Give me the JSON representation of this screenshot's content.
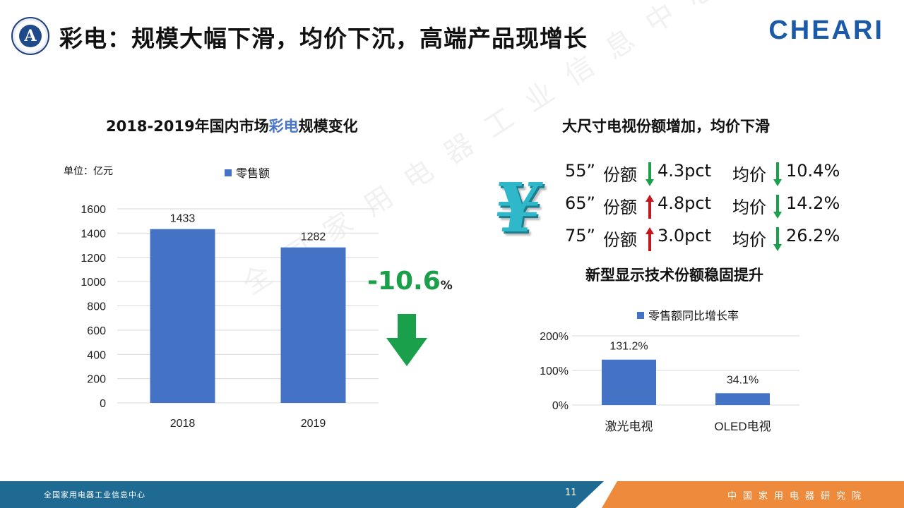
{
  "header": {
    "title": "彩电：规模大幅下滑，均价下沉，高端产品现增长",
    "brand": "CHEARI",
    "logo_letter": "A"
  },
  "colors": {
    "bar": "#4472c4",
    "down": "#1aa04a",
    "up": "#c0181e",
    "footer_blue": "#1f6a93",
    "footer_orange": "#ee8a3c"
  },
  "left": {
    "title_pre": "2018-2019年国内市场",
    "title_hl": "彩电",
    "title_post": "规模变化",
    "unit": "单位：亿元",
    "legend": "零售额",
    "change_value": "-10.6",
    "change_unit": "%"
  },
  "right": {
    "title": "大尺寸电视份额增加，均价下滑",
    "rows": [
      {
        "size": "55”",
        "share_label": "份额",
        "share_dir": "down",
        "share_val": "4.3pct",
        "price_label": "均价",
        "price_dir": "down",
        "price_val": "10.4%"
      },
      {
        "size": "65”",
        "share_label": "份额",
        "share_dir": "up",
        "share_val": "4.8pct",
        "price_label": "均价",
        "price_dir": "down",
        "price_val": "14.2%"
      },
      {
        "size": "75”",
        "share_label": "份额",
        "share_dir": "up",
        "share_val": "3.0pct",
        "price_label": "均价",
        "price_dir": "down",
        "price_val": "26.2%"
      }
    ],
    "subtitle": "新型显示技术份额稳固提升",
    "legend": "零售额同比增长率",
    "yen_symbol": "¥"
  },
  "chart_data": [
    {
      "type": "bar",
      "title": "2018-2019年国内市场彩电规模变化",
      "categories": [
        "2018",
        "2019"
      ],
      "series": [
        {
          "name": "零售额",
          "values": [
            1433,
            1282
          ]
        }
      ],
      "data_labels": [
        "1433",
        "1282"
      ],
      "ylabel": "单位：亿元",
      "ylim": [
        0,
        1600
      ],
      "yticks": [
        0,
        200,
        400,
        600,
        800,
        1000,
        1200,
        1400,
        1600
      ],
      "grid": true,
      "legend": "top"
    },
    {
      "type": "bar",
      "title": "新型显示技术份额稳固提升",
      "categories": [
        "激光电视",
        "OLED电视"
      ],
      "series": [
        {
          "name": "零售额同比增长率",
          "values": [
            131.2,
            34.1
          ]
        }
      ],
      "data_labels": [
        "131.2%",
        "34.1%"
      ],
      "ylim": [
        0,
        200
      ],
      "yticks": [
        0,
        100,
        200
      ],
      "ytick_labels": [
        "0%",
        "100%",
        "200%"
      ],
      "grid": true,
      "legend": "top"
    }
  ],
  "footer": {
    "left_text": "全国家用电器工业信息中心",
    "page": "11",
    "right_text": "中国家用电器研究院"
  },
  "watermark": "全国家用电器工业信息中心"
}
